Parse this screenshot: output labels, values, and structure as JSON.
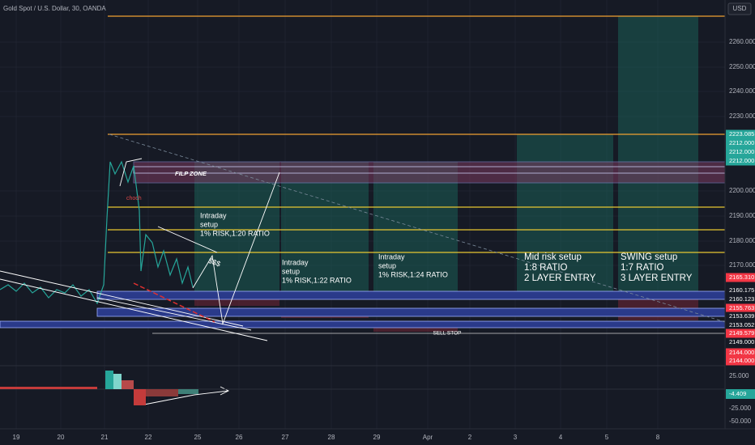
{
  "header": {
    "symbol": "Gold Spot / U.S. Dollar, 30, OANDA",
    "currency": "USD"
  },
  "price_axis": [
    "2260.000",
    "2250.000",
    "2240.000",
    "2230.000",
    "2200.000",
    "2190.000",
    "2180.000",
    "2170.000"
  ],
  "price_tags": [
    "2223.085",
    "2212.000",
    "2212.000",
    "2212.000",
    "2165.310",
    "2160.175",
    "2160.123",
    "2155.763",
    "2153.639",
    "2153.052",
    "2149.579",
    "2149.000",
    "2144.000",
    "2144.000"
  ],
  "indicator_axis": [
    "25.000",
    "-25.000",
    "-50.000"
  ],
  "indicator_tag": "-4.409",
  "date_axis": [
    "19",
    "20",
    "21",
    "22",
    "25",
    "26",
    "27",
    "28",
    "29",
    "Apr",
    "2",
    "3",
    "4",
    "5",
    "8"
  ],
  "annotations": {
    "flip_zone": "FILP ZONE",
    "choch": "choch",
    "liquidity": "$$$",
    "sell_stop": "SELL STOP",
    "setups": [
      {
        "lines": [
          "Intraday",
          "setup",
          "1% RISK,1:20 RATIO"
        ]
      },
      {
        "lines": [
          "Intraday",
          "setup",
          "1% RISK,1:22 RATIO"
        ]
      },
      {
        "lines": [
          "Intraday",
          "setup",
          "1% RISK,1:24 RATIO"
        ]
      },
      {
        "lines": [
          "Mid risk  setup",
          "1:8 RATIO",
          "2 LAYER ENTRY"
        ]
      },
      {
        "lines": [
          "SWING setup",
          "1:7 RATIO",
          "3 LAYER ENTRY"
        ]
      }
    ]
  }
}
